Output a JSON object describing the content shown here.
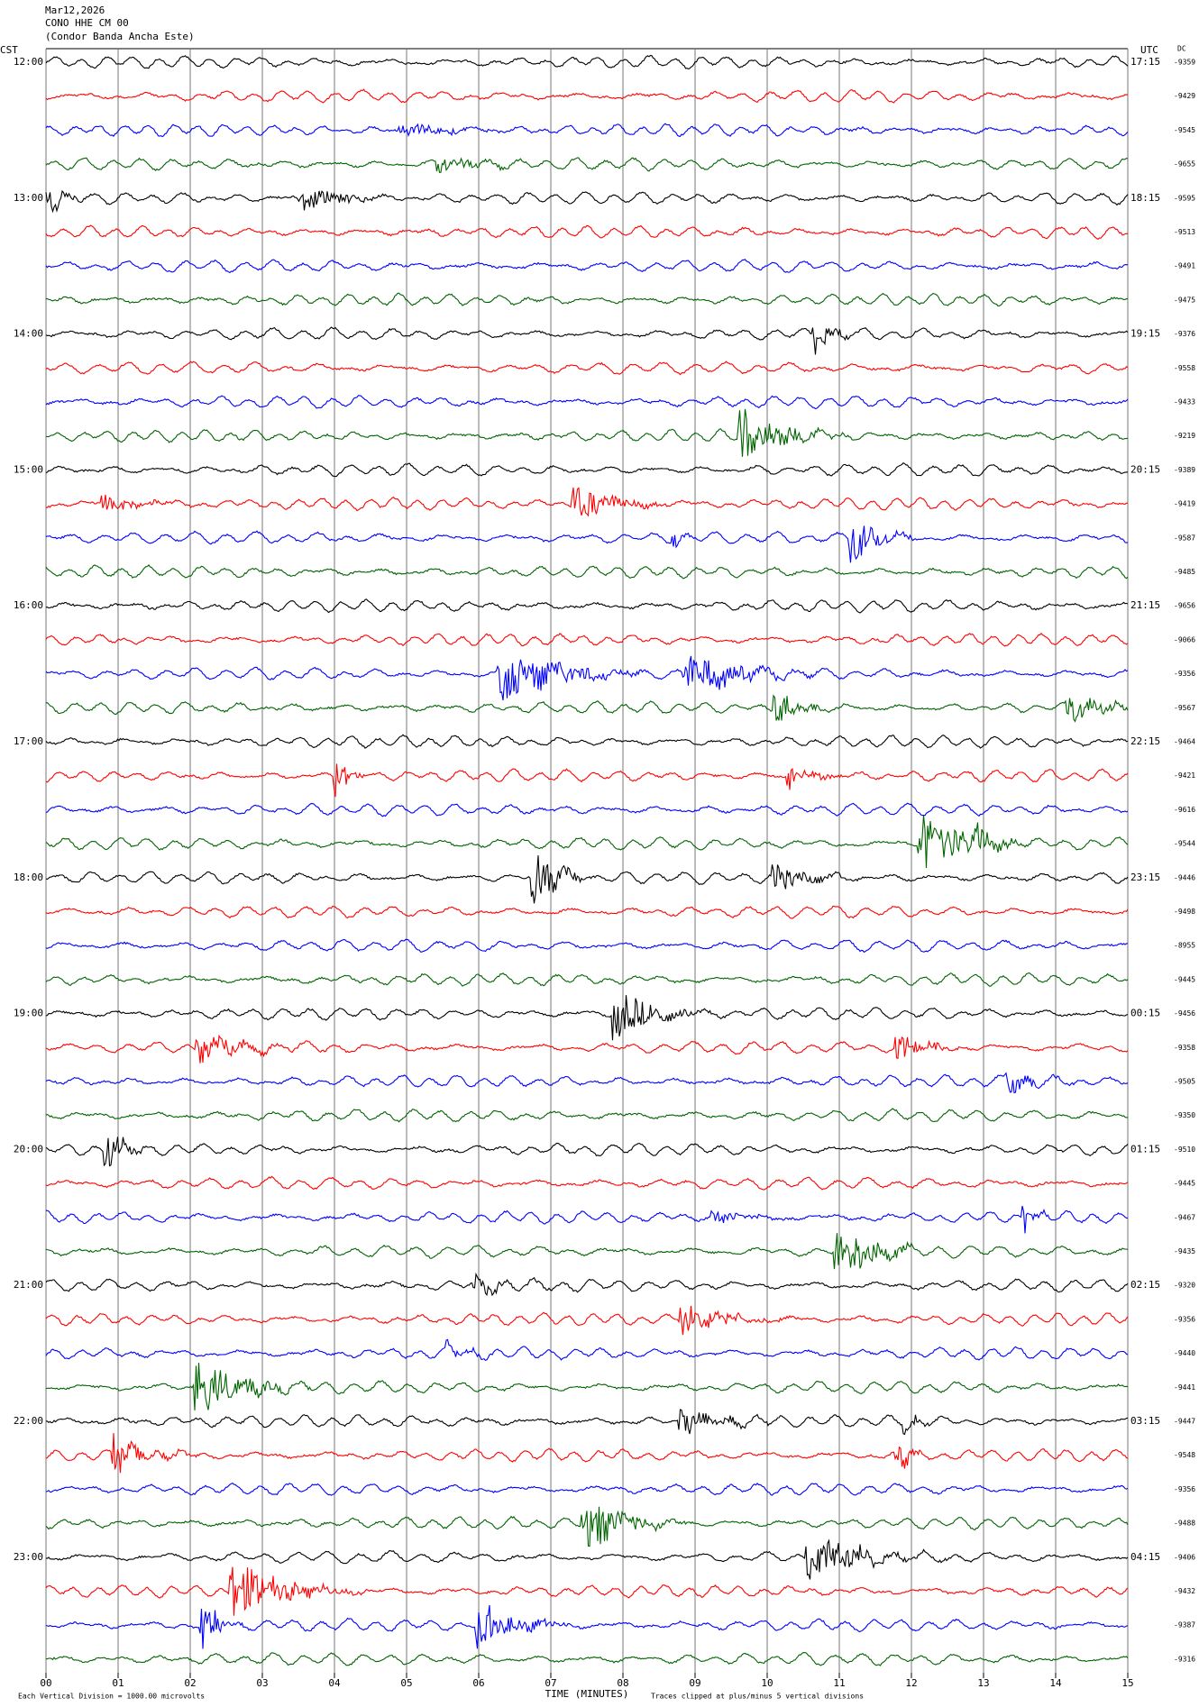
{
  "header": {
    "date": "Mar12,2026",
    "station": "CONO HHE CM 00",
    "site": "(Condor Banda Ancha Este)"
  },
  "axes": {
    "left_label": "CST",
    "right_label": "UTC",
    "dc_label": "DC",
    "x_label": "TIME (MINUTES)",
    "x_ticks": [
      "00",
      "01",
      "02",
      "03",
      "04",
      "05",
      "06",
      "07",
      "08",
      "09",
      "10",
      "11",
      "12",
      "13",
      "14",
      "15"
    ]
  },
  "cst_times": [
    "12:00",
    "13:00",
    "14:00",
    "15:00",
    "16:00",
    "17:00",
    "18:00",
    "19:00",
    "20:00",
    "21:00",
    "22:00",
    "23:00"
  ],
  "utc_times": [
    "17:15",
    "18:15",
    "19:15",
    "20:15",
    "21:15",
    "22:15",
    "23:15",
    "00:15",
    "01:15",
    "02:15",
    "03:15",
    "04:15"
  ],
  "dc_offsets": [
    -9359,
    -9429,
    -9545,
    -9655,
    -9595,
    -9513,
    -9491,
    -9475,
    -9376,
    -9558,
    -9433,
    -9219,
    -9389,
    -9419,
    -9587,
    -9485,
    -9656,
    -9066,
    -9356,
    -9567,
    -9464,
    -9421,
    -9616,
    -9544,
    -9446,
    -9498,
    -8955,
    -9445,
    -9456,
    -9358,
    -9505,
    -9350,
    -9510,
    -9445,
    -9467,
    -9435,
    -9320,
    -9356,
    -9440,
    -9441,
    -9447,
    -9548,
    -9356,
    -9488,
    -9406,
    -9432,
    -9387,
    -9316
  ],
  "footer": {
    "scale_note": "Each Vertical Division = 1000.00 microvolts",
    "clip_note": "Traces clipped at plus/minus 5 vertical divisions"
  }
}
